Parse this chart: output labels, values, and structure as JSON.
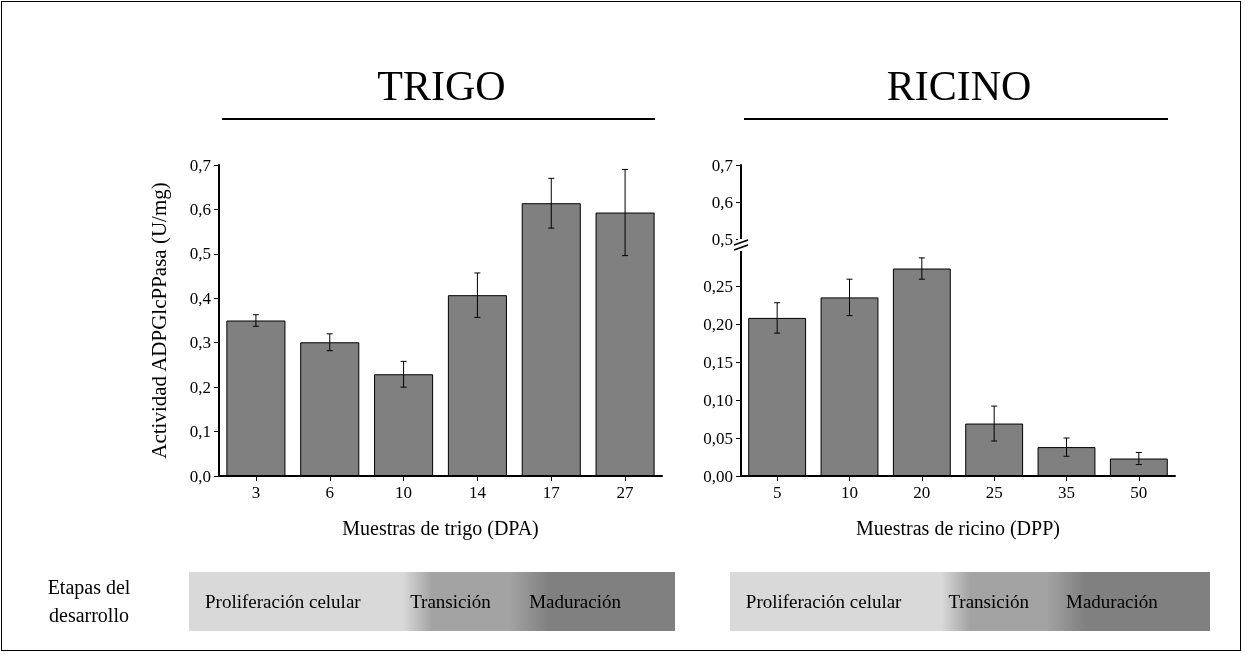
{
  "chart_data": [
    {
      "type": "bar",
      "title": "TRIGO",
      "xlabel": "Muestras de trigo (DPA)",
      "ylabel": "Actividad ADPGlcPPasa (U/mg)",
      "categories": [
        "3",
        "6",
        "10",
        "14",
        "17",
        "27"
      ],
      "values": [
        0.35,
        0.301,
        0.229,
        0.407,
        0.614,
        0.593
      ],
      "errors": [
        0.013,
        0.019,
        0.029,
        0.05,
        0.056,
        0.097
      ],
      "color": "#808080",
      "ylim": [
        0,
        0.7
      ],
      "yticks": [
        {
          "value": 0,
          "label": "0,0"
        },
        {
          "value": 0.1,
          "label": "0,1"
        },
        {
          "value": 0.2,
          "label": "0,2"
        },
        {
          "value": 0.3,
          "label": "0,3"
        },
        {
          "value": 0.4,
          "label": "0,4"
        },
        {
          "value": 0.5,
          "label": "0,5"
        },
        {
          "value": 0.6,
          "label": "0,6"
        },
        {
          "value": 0.7,
          "label": "0,7"
        }
      ],
      "grid": false,
      "annotations": [
        "Etapas del desarrollo",
        "Proliferación celular",
        "Transición",
        "Maduración"
      ]
    },
    {
      "type": "bar",
      "title": "RICINO",
      "categories": [
        "5",
        "10",
        "20",
        "25",
        "35",
        "50"
      ],
      "values": [
        null,
        null,
        null,
        null,
        null,
        null
      ],
      "color": "#808080",
      "ylim": [
        0.5,
        0.7
      ],
      "yticks": [
        {
          "value": 0.5,
          "label": "0,5"
        },
        {
          "value": 0.6,
          "label": "0,6"
        },
        {
          "value": 0.7,
          "label": "0,7"
        }
      ],
      "tick_labels": "y",
      "grid": false
    },
    {
      "type": "bar",
      "xlabel": "Muestras de ricino (DPP)",
      "categories": [
        "5",
        "10",
        "20",
        "25",
        "35",
        "50"
      ],
      "values": [
        0.208,
        0.235,
        0.273,
        0.069,
        0.038,
        0.023
      ],
      "errors": [
        0.02,
        0.024,
        0.014,
        0.023,
        0.012,
        0.008
      ],
      "color": "#808080",
      "ylim": [
        0,
        0.3
      ],
      "yticks": [
        {
          "value": 0,
          "label": "0,00"
        },
        {
          "value": 0.05,
          "label": "0,05"
        },
        {
          "value": 0.1,
          "label": "0,10"
        },
        {
          "value": 0.15,
          "label": "0,15"
        },
        {
          "value": 0.2,
          "label": "0,20"
        },
        {
          "value": 0.25,
          "label": "0,25"
        }
      ],
      "grid": false,
      "annotations": [
        "Proliferación celular",
        "Transición",
        "Maduración"
      ]
    }
  ]
}
